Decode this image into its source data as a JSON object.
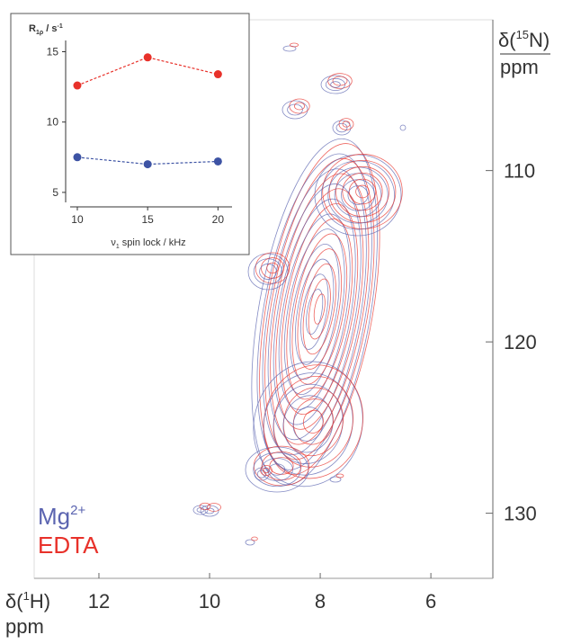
{
  "chart_data": [
    {
      "type": "contour",
      "xlabel": {
        "text": "δ(",
        "sup": "1",
        "rest": "H)"
      },
      "xunit": "ppm",
      "ylabel": {
        "text": "δ(",
        "sup": "15",
        "rest": "N)"
      },
      "yunit": "ppm",
      "xlim": [
        13.17,
        4.88
      ],
      "ylim": [
        101.2,
        133.8
      ],
      "xticks": [
        12,
        10,
        8,
        6
      ],
      "yticks": [
        110,
        120,
        130
      ],
      "series": [
        {
          "name": "Mg",
          "name_sup": "2+",
          "color": "#5b64b0"
        },
        {
          "name": "EDTA",
          "color": "#e8312a"
        }
      ]
    },
    {
      "type": "line",
      "ylabel": {
        "text": "R",
        "sub": "1ρ",
        "rest": " / s",
        "sup": "-1"
      },
      "xlabel": {
        "text": "ν",
        "sub": "1",
        "rest": " spin lock / kHz"
      },
      "x": [
        10,
        15,
        20
      ],
      "xlim": [
        9.17,
        21.0
      ],
      "ylim": [
        3.97,
        15.8
      ],
      "xticks": [
        10,
        15,
        20
      ],
      "yticks": [
        5,
        10,
        15
      ],
      "series": [
        {
          "name": "EDTA",
          "color": "#e8312a",
          "values": [
            12.6,
            14.6,
            13.4
          ]
        },
        {
          "name": "Mg2+",
          "color": "#3d53a4",
          "values": [
            7.5,
            7.0,
            7.2
          ]
        }
      ]
    }
  ]
}
